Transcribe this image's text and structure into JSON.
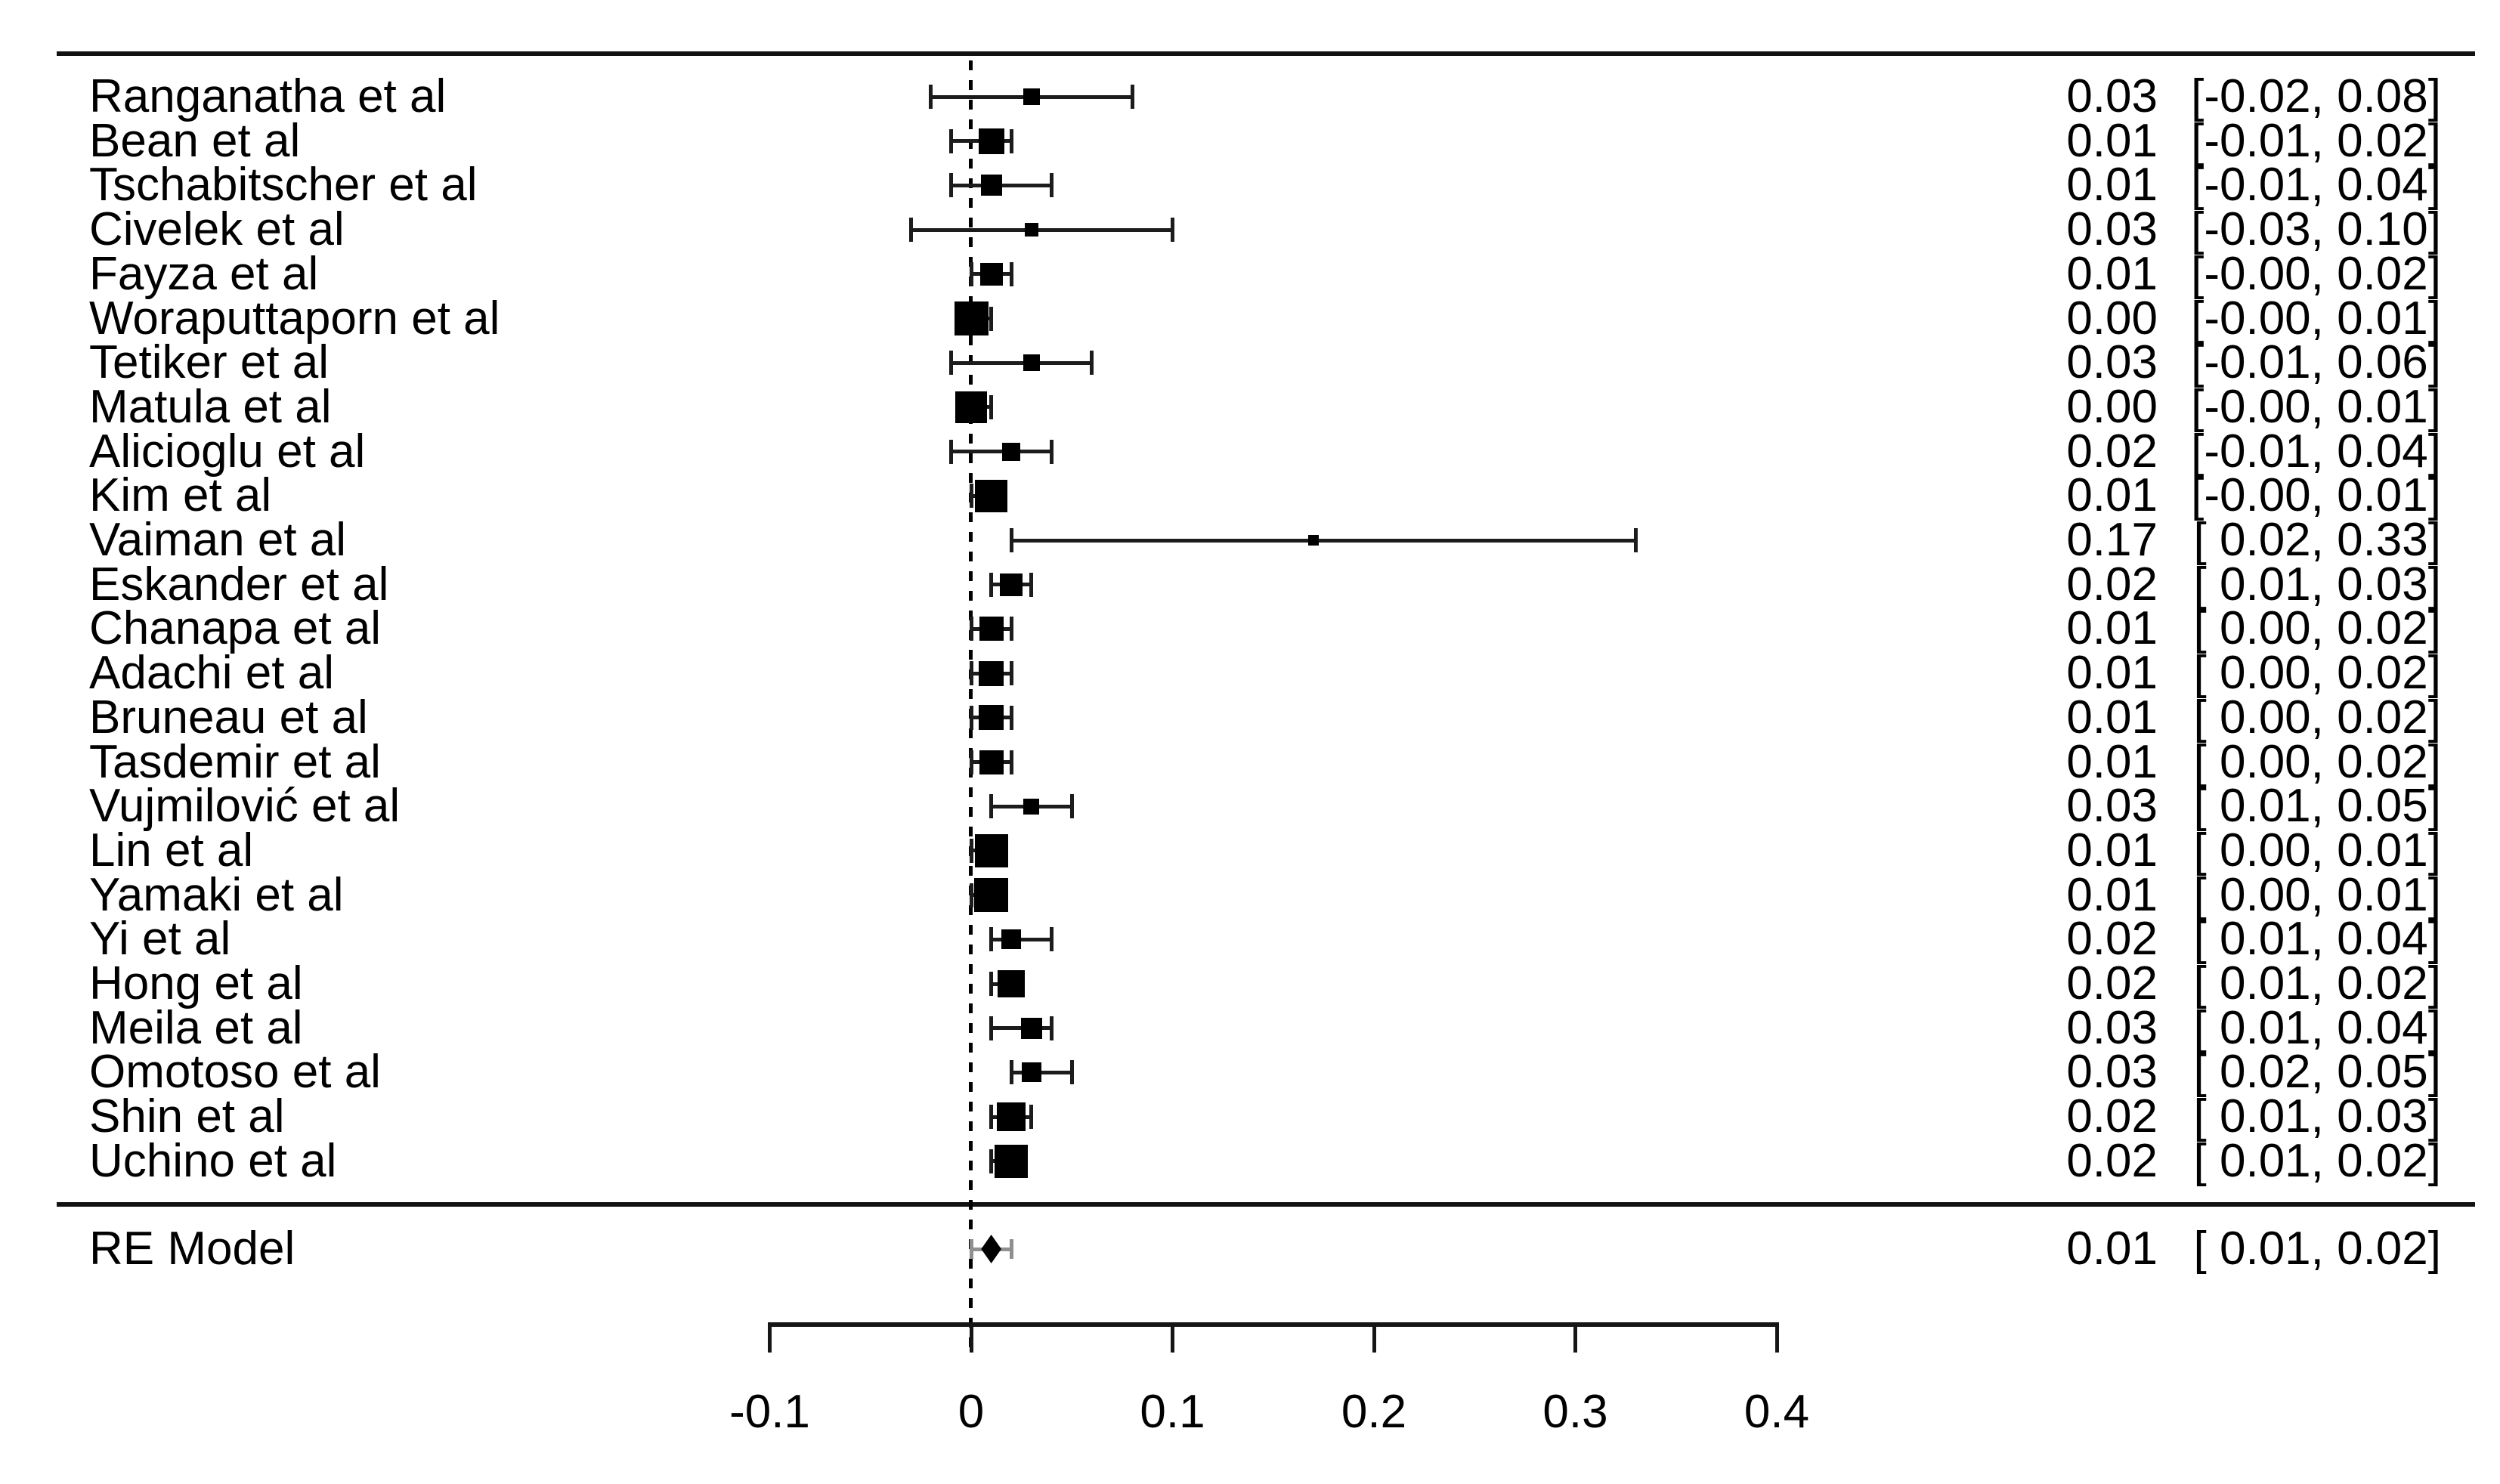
{
  "chart_data": {
    "type": "forest",
    "title": "",
    "xlabel": "",
    "axis": {
      "xlim": [
        -0.1,
        0.4
      ],
      "zero_line": 0,
      "ticks": [
        {
          "value": -0.1,
          "label": "-0.1"
        },
        {
          "value": 0,
          "label": "0"
        },
        {
          "value": 0.1,
          "label": "0.1"
        },
        {
          "value": 0.2,
          "label": "0.2"
        },
        {
          "value": 0.3,
          "label": "0.3"
        },
        {
          "value": 0.4,
          "label": "0.4"
        }
      ]
    },
    "studies": [
      {
        "name": "Ranganatha et al",
        "est": 0.03,
        "lo": -0.02,
        "hi": 0.08,
        "est_label": "0.03",
        "ci_label": "[-0.02, 0.08]",
        "size": 22
      },
      {
        "name": "Bean et al",
        "est": 0.01,
        "lo": -0.01,
        "hi": 0.02,
        "est_label": "0.01",
        "ci_label": "[-0.01, 0.02]",
        "size": 34
      },
      {
        "name": "Tschabitscher et al",
        "est": 0.01,
        "lo": -0.01,
        "hi": 0.04,
        "est_label": "0.01",
        "ci_label": "[-0.01, 0.04]",
        "size": 28
      },
      {
        "name": "Civelek et al",
        "est": 0.03,
        "lo": -0.03,
        "hi": 0.1,
        "est_label": "0.03",
        "ci_label": "[-0.03, 0.10]",
        "size": 18
      },
      {
        "name": "Fayza et al",
        "est": 0.01,
        "lo": -0.0,
        "hi": 0.02,
        "est_label": "0.01",
        "ci_label": "[-0.00, 0.02]",
        "size": 30
      },
      {
        "name": "Woraputtaporn et al",
        "est": 0.0,
        "lo": -0.0,
        "hi": 0.01,
        "est_label": "0.00",
        "ci_label": "[-0.00, 0.01]",
        "size": 45
      },
      {
        "name": "Tetiker et al",
        "est": 0.03,
        "lo": -0.01,
        "hi": 0.06,
        "est_label": "0.03",
        "ci_label": "[-0.01, 0.06]",
        "size": 22
      },
      {
        "name": "Matula et al",
        "est": 0.0,
        "lo": -0.0,
        "hi": 0.01,
        "est_label": "0.00",
        "ci_label": "[-0.00, 0.01]",
        "size": 42
      },
      {
        "name": "Alicioglu et al",
        "est": 0.02,
        "lo": -0.01,
        "hi": 0.04,
        "est_label": "0.02",
        "ci_label": "[-0.01, 0.04]",
        "size": 24
      },
      {
        "name": "Kim et al",
        "est": 0.01,
        "lo": -0.0,
        "hi": 0.01,
        "est_label": "0.01",
        "ci_label": "[-0.00, 0.01]",
        "size": 43
      },
      {
        "name": "Vaiman et al",
        "est": 0.17,
        "lo": 0.02,
        "hi": 0.33,
        "est_label": "0.17",
        "ci_label": "[ 0.02, 0.33]",
        "size": 14
      },
      {
        "name": "Eskander et al",
        "est": 0.02,
        "lo": 0.01,
        "hi": 0.03,
        "est_label": "0.02",
        "ci_label": "[ 0.01, 0.03]",
        "size": 30
      },
      {
        "name": "Chanapa et al",
        "est": 0.01,
        "lo": 0.0,
        "hi": 0.02,
        "est_label": "0.01",
        "ci_label": "[ 0.00, 0.02]",
        "size": 32
      },
      {
        "name": "Adachi et al",
        "est": 0.01,
        "lo": 0.0,
        "hi": 0.02,
        "est_label": "0.01",
        "ci_label": "[ 0.00, 0.02]",
        "size": 33
      },
      {
        "name": "Bruneau et al",
        "est": 0.01,
        "lo": 0.0,
        "hi": 0.02,
        "est_label": "0.01",
        "ci_label": "[ 0.00, 0.02]",
        "size": 33
      },
      {
        "name": "Tasdemir et al",
        "est": 0.01,
        "lo": 0.0,
        "hi": 0.02,
        "est_label": "0.01",
        "ci_label": "[ 0.00, 0.02]",
        "size": 32
      },
      {
        "name": "Vujmilović et al",
        "est": 0.03,
        "lo": 0.01,
        "hi": 0.05,
        "est_label": "0.03",
        "ci_label": "[ 0.01, 0.05]",
        "size": 21
      },
      {
        "name": "Lin et al",
        "est": 0.01,
        "lo": 0.0,
        "hi": 0.01,
        "est_label": "0.01",
        "ci_label": "[ 0.00, 0.01]",
        "size": 44
      },
      {
        "name": "Yamaki et al",
        "est": 0.01,
        "lo": 0.0,
        "hi": 0.01,
        "est_label": "0.01",
        "ci_label": "[ 0.00, 0.01]",
        "size": 45
      },
      {
        "name": "Yi et al",
        "est": 0.02,
        "lo": 0.01,
        "hi": 0.04,
        "est_label": "0.02",
        "ci_label": "[ 0.01, 0.04]",
        "size": 26
      },
      {
        "name": "Hong et al",
        "est": 0.02,
        "lo": 0.01,
        "hi": 0.02,
        "est_label": "0.02",
        "ci_label": "[ 0.01, 0.02]",
        "size": 36
      },
      {
        "name": "Meila et al",
        "est": 0.03,
        "lo": 0.01,
        "hi": 0.04,
        "est_label": "0.03",
        "ci_label": "[ 0.01, 0.04]",
        "size": 28
      },
      {
        "name": "Omotoso et al",
        "est": 0.03,
        "lo": 0.02,
        "hi": 0.05,
        "est_label": "0.03",
        "ci_label": "[ 0.02, 0.05]",
        "size": 26
      },
      {
        "name": "Shin et al",
        "est": 0.02,
        "lo": 0.01,
        "hi": 0.03,
        "est_label": "0.02",
        "ci_label": "[ 0.01, 0.03]",
        "size": 38
      },
      {
        "name": "Uchino et al",
        "est": 0.02,
        "lo": 0.01,
        "hi": 0.02,
        "est_label": "0.02",
        "ci_label": "[ 0.01, 0.02]",
        "size": 44
      }
    ],
    "re_model": {
      "label": "RE Model",
      "est": 0.01,
      "lo": 0.01,
      "hi": 0.02,
      "est_label": "0.01",
      "ci_label": "[ 0.01, 0.02]",
      "interval_lo": 0.0,
      "interval_hi": 0.02
    },
    "colors": {
      "marker": "#000000",
      "ci_line": "#1c1c1c",
      "re_interval": "#8f8f8f",
      "rule": "#111111"
    }
  }
}
